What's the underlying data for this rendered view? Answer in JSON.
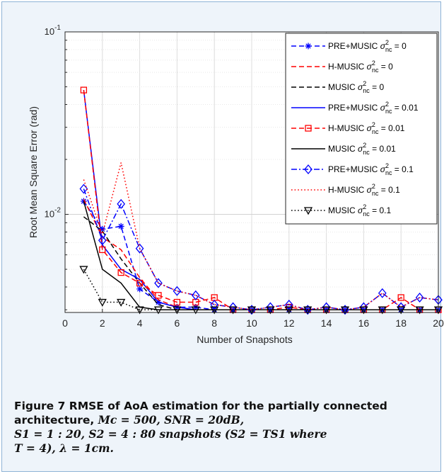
{
  "chart_data": {
    "type": "line",
    "xlabel": "Number of Snapshots",
    "ylabel": "Root Mean Square Error (rad)",
    "xlim": [
      0,
      20
    ],
    "ylim": [
      0.0029,
      0.1
    ],
    "yscale": "log",
    "grid": true,
    "legend_position": "top-right",
    "x_ticks": [
      "0",
      "2",
      "4",
      "6",
      "8",
      "10",
      "12",
      "14",
      "16",
      "18",
      "20"
    ],
    "y_ticks": [
      {
        "base": "10",
        "exp": "-1",
        "value": 0.1
      },
      {
        "base": "10",
        "exp": "-2",
        "value": 0.01
      }
    ],
    "x": [
      1,
      2,
      3,
      4,
      5,
      6,
      7,
      8,
      9,
      10,
      11,
      12,
      13,
      14,
      15,
      16,
      17,
      18,
      19,
      20
    ],
    "series": [
      {
        "name": "PRE+MUSIC",
        "sigma_value": "0",
        "color": "#0000ff",
        "dash": "dash",
        "marker": "star",
        "values": [
          0.0118,
          0.0083,
          0.0086,
          0.0039,
          0.0033,
          0.0031,
          0.0031,
          0.003,
          0.003,
          0.003,
          0.003,
          0.003,
          0.003,
          0.003,
          0.003,
          0.003,
          0.003,
          0.003,
          0.003,
          0.003
        ]
      },
      {
        "name": "H-MUSIC",
        "sigma_value": "0",
        "color": "#ff0000",
        "dash": "dash",
        "marker": "none",
        "values": [
          0.0121,
          0.0075,
          0.0064,
          0.0045,
          0.0034,
          0.0031,
          0.003,
          0.003,
          0.003,
          0.003,
          0.003,
          0.003,
          0.003,
          0.003,
          0.003,
          0.003,
          0.003,
          0.003,
          0.003,
          0.003
        ]
      },
      {
        "name": "MUSIC",
        "sigma_value": "0",
        "color": "#000000",
        "dash": "dash",
        "marker": "none",
        "values": [
          0.0097,
          0.0081,
          0.0057,
          0.0042,
          0.0032,
          0.003,
          0.003,
          0.003,
          0.003,
          0.003,
          0.003,
          0.003,
          0.003,
          0.003,
          0.003,
          0.003,
          0.003,
          0.003,
          0.003,
          0.003
        ]
      },
      {
        "name": "PRE+MUSIC",
        "sigma_value": "0.01",
        "color": "#0000ff",
        "dash": "solid",
        "marker": "none",
        "values": [
          0.048,
          0.0068,
          0.005,
          0.0044,
          0.0033,
          0.0031,
          0.003,
          0.003,
          0.003,
          0.003,
          0.003,
          0.003,
          0.003,
          0.003,
          0.003,
          0.003,
          0.003,
          0.003,
          0.003,
          0.003
        ]
      },
      {
        "name": "H-MUSIC",
        "sigma_value": "0.01",
        "color": "#ff0000",
        "dash": "dash",
        "marker": "square",
        "values": [
          0.048,
          0.0064,
          0.0048,
          0.0042,
          0.0036,
          0.0033,
          0.0033,
          0.0035,
          0.003,
          0.003,
          0.003,
          0.0031,
          0.003,
          0.003,
          0.003,
          0.003,
          0.003,
          0.0035,
          0.003,
          0.003
        ]
      },
      {
        "name": "MUSIC",
        "sigma_value": "0.01",
        "color": "#000000",
        "dash": "solid",
        "marker": "none",
        "values": [
          0.0118,
          0.005,
          0.0042,
          0.0031,
          0.003,
          0.003,
          0.003,
          0.003,
          0.003,
          0.003,
          0.003,
          0.003,
          0.003,
          0.003,
          0.003,
          0.003,
          0.003,
          0.003,
          0.003,
          0.003
        ]
      },
      {
        "name": "PRE+MUSIC",
        "sigma_value": "0.1",
        "color": "#0000ff",
        "dash": "dashdot",
        "marker": "diamond",
        "values": [
          0.0138,
          0.0072,
          0.0114,
          0.0065,
          0.0042,
          0.0038,
          0.0036,
          0.0032,
          0.0031,
          0.003,
          0.0031,
          0.0032,
          0.003,
          0.0031,
          0.003,
          0.0031,
          0.0037,
          0.0031,
          0.0035,
          0.0034
        ]
      },
      {
        "name": "H-MUSIC",
        "sigma_value": "0.1",
        "color": "#ff0000",
        "dash": "dot",
        "marker": "none",
        "values": [
          0.0155,
          0.0078,
          0.0192,
          0.0065,
          0.0042,
          0.0038,
          0.0036,
          0.0032,
          0.0031,
          0.003,
          0.0031,
          0.0032,
          0.003,
          0.0031,
          0.003,
          0.0031,
          0.0037,
          0.0031,
          0.0035,
          0.0034
        ]
      },
      {
        "name": "MUSIC",
        "sigma_value": "0.1",
        "color": "#000000",
        "dash": "dot",
        "marker": "triangle-down",
        "values": [
          0.005,
          0.0033,
          0.0033,
          0.003,
          0.003,
          0.003,
          0.003,
          0.003,
          0.003,
          0.003,
          0.003,
          0.003,
          0.003,
          0.003,
          0.003,
          0.003,
          0.003,
          0.003,
          0.003,
          0.003
        ]
      }
    ]
  },
  "caption": {
    "label": "Figure 7",
    "text": "RMSE of AoA estimation for the partially connected architecture,",
    "math_1": "Mc = 500, SNR = 20dB,",
    "math_2": "S1 = 1 : 20, S2 = 4 : 80 snapshots (S2 = TS1 where",
    "math_3": "T = 4), λ = 1cm."
  }
}
